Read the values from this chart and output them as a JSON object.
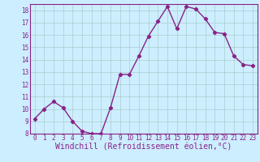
{
  "x": [
    0,
    1,
    2,
    3,
    4,
    5,
    6,
    7,
    8,
    9,
    10,
    11,
    12,
    13,
    14,
    15,
    16,
    17,
    18,
    19,
    20,
    21,
    22,
    23
  ],
  "y": [
    9.2,
    10.0,
    10.6,
    10.1,
    9.0,
    8.2,
    8.0,
    8.0,
    10.1,
    12.8,
    12.8,
    14.3,
    15.9,
    17.1,
    18.3,
    16.5,
    18.3,
    18.1,
    17.3,
    16.2,
    16.1,
    14.3,
    13.6,
    13.5
  ],
  "line_color": "#882288",
  "marker": "D",
  "marker_size": 2.2,
  "bg_color": "#cceeff",
  "grid_color": "#aacccc",
  "xlabel": "Windchill (Refroidissement éolien,°C)",
  "ylim": [
    8,
    18.5
  ],
  "xlim": [
    -0.5,
    23.5
  ],
  "yticks": [
    8,
    9,
    10,
    11,
    12,
    13,
    14,
    15,
    16,
    17,
    18
  ],
  "xticks": [
    0,
    1,
    2,
    3,
    4,
    5,
    6,
    7,
    8,
    9,
    10,
    11,
    12,
    13,
    14,
    15,
    16,
    17,
    18,
    19,
    20,
    21,
    22,
    23
  ],
  "tick_label_fontsize": 5.5,
  "xlabel_fontsize": 7.0,
  "line_width": 1.0,
  "spine_color": "#882288"
}
